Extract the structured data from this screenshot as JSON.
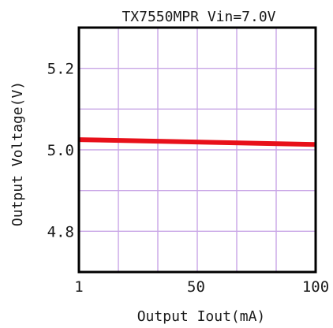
{
  "chart_data": {
    "type": "line",
    "title": "TX7550MPR Vin=7.0V",
    "xlabel": "Output Iout(mA)",
    "ylabel": "Output Voltage(V)",
    "xlim": [
      1,
      100
    ],
    "ylim": [
      4.7,
      5.3
    ],
    "x_ticks": [
      1,
      50,
      100
    ],
    "x_tick_labels": [
      "1",
      "50",
      "100"
    ],
    "y_ticks": [
      4.8,
      5.0,
      5.2
    ],
    "y_tick_labels": [
      "4.8",
      "5.0",
      "5.2"
    ],
    "grid": true,
    "series": [
      {
        "x": [
          1,
          100
        ],
        "y": [
          5.025,
          5.013
        ]
      }
    ]
  },
  "colors": {
    "background": "#ffffff",
    "grid": "#c9a6e6",
    "frame": "#000000",
    "line": "#e8101a",
    "text": "#1a1a1a"
  }
}
